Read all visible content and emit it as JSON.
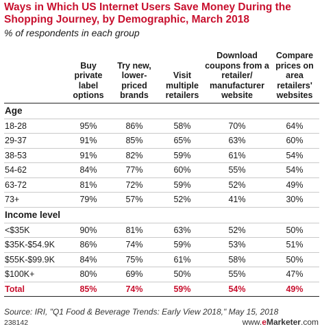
{
  "header": {
    "title": "Ways in Which US Internet Users Save Money During the Shopping Journey, by Demographic, March 2018",
    "subtitle": "% of respondents in each group"
  },
  "footer": {
    "source": "Source: IRI, \"Q1 Food & Beverage Trends: Early View 2018,\" May 15, 2018",
    "chart_id": "238142",
    "brand_prefix": "www.",
    "brand_e": "e",
    "brand_rest": "Marketer",
    "brand_suffix": ".com"
  },
  "colors": {
    "accent": "#c8102e",
    "text": "#1a1a1a",
    "rule": "#c9c9c9"
  },
  "chart_data": {
    "type": "table",
    "title": "Ways in Which US Internet Users Save Money During the Shopping Journey, by Demographic, March 2018",
    "subtitle": "% of respondents in each group",
    "columns": [
      "Buy private label options",
      "Try new, lower-priced brands",
      "Visit multiple retailers",
      "Download coupons from a retailer/ manufacturer website",
      "Compare prices on area retailers' websites"
    ],
    "groups": [
      {
        "name": "Age",
        "rows": [
          {
            "label": "18-28",
            "values": [
              "95%",
              "86%",
              "58%",
              "70%",
              "64%"
            ]
          },
          {
            "label": "29-37",
            "values": [
              "91%",
              "85%",
              "65%",
              "63%",
              "60%"
            ]
          },
          {
            "label": "38-53",
            "values": [
              "91%",
              "82%",
              "59%",
              "61%",
              "54%"
            ]
          },
          {
            "label": "54-62",
            "values": [
              "84%",
              "77%",
              "60%",
              "55%",
              "54%"
            ]
          },
          {
            "label": "63-72",
            "values": [
              "81%",
              "72%",
              "59%",
              "52%",
              "49%"
            ]
          },
          {
            "label": "73+",
            "values": [
              "79%",
              "57%",
              "52%",
              "41%",
              "30%"
            ]
          }
        ]
      },
      {
        "name": "Income level",
        "rows": [
          {
            "label": "<$35K",
            "values": [
              "90%",
              "81%",
              "63%",
              "52%",
              "50%"
            ]
          },
          {
            "label": "$35K-$54.9K",
            "values": [
              "86%",
              "74%",
              "59%",
              "53%",
              "51%"
            ]
          },
          {
            "label": "$55K-$99.9K",
            "values": [
              "84%",
              "75%",
              "61%",
              "58%",
              "50%"
            ]
          },
          {
            "label": "$100K+",
            "values": [
              "80%",
              "69%",
              "50%",
              "55%",
              "47%"
            ]
          }
        ]
      }
    ],
    "total": {
      "label": "Total",
      "values": [
        "85%",
        "74%",
        "59%",
        "54%",
        "49%"
      ]
    }
  }
}
